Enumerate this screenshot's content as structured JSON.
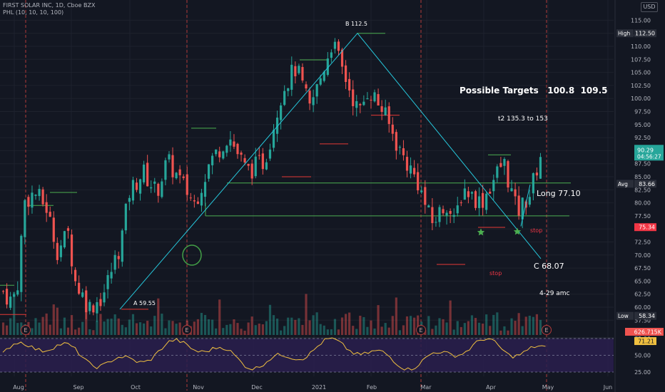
{
  "header": {
    "symbol": "FIRST SOLAR INC, 1D, Cboe BZX",
    "indicator": "PHL (10, 10, 10, 100)",
    "currency": "USD"
  },
  "chart_data": {
    "type": "candlestick",
    "price_axis": {
      "ticks": [
        57.5,
        60.0,
        62.5,
        65.0,
        67.5,
        70.0,
        72.5,
        75.0,
        77.5,
        80.0,
        82.5,
        85.0,
        87.5,
        90.0,
        92.5,
        95.0,
        97.5,
        100.0,
        102.5,
        105.0,
        107.5,
        110.0,
        112.5,
        115.0
      ]
    },
    "rsi_axis": {
      "ticks": [
        25.0,
        50.0,
        75.0
      ]
    },
    "time_axis": [
      "Aug",
      "Sep",
      "Oct",
      "Nov",
      "Dec",
      "2021",
      "Feb",
      "Mar",
      "Apr",
      "May",
      "Jun"
    ],
    "price_tags": [
      {
        "label": "High",
        "value": "112.50",
        "price": 112.5
      },
      {
        "label": "Avg",
        "value": "83.66",
        "price": 83.66
      },
      {
        "label": "",
        "value": "75.34",
        "price": 75.34,
        "color": "#f23645"
      },
      {
        "label": "Low",
        "value": "58.34",
        "price": 58.34
      }
    ],
    "last_price": {
      "value": "90.29",
      "countdown": "04:56:27",
      "price": 90.29
    },
    "volume_tag": "626.715K",
    "rsi_tag": "71.21",
    "annotations": {
      "targets": "Possible Targets   100.8  109.5",
      "t2": "t2  135.3 to 153",
      "long": "Long 77.10",
      "point_a": "A 59.55",
      "point_b": "B 112.5",
      "point_c": "C 68.07",
      "stop1": "stop",
      "stop2": "stop",
      "earnings": "4-29 amc"
    },
    "event_marker": "E",
    "colors": {
      "up": "#26a69a",
      "down": "#ef5350",
      "green_line": "#4caf50",
      "trend": "#26c6da",
      "rsi": "#f0c040",
      "rsi_band": "#2a1f4d",
      "red_marker": "#e53935"
    }
  }
}
